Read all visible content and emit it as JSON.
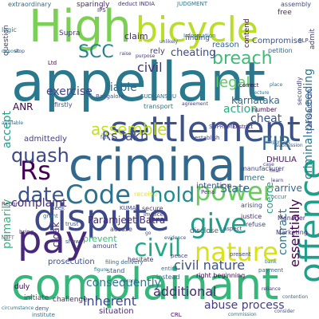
{
  "cloud": {
    "words": [
      {
        "id": "high",
        "text": "High",
        "color": "#7ad151"
      },
      {
        "id": "bicycle",
        "text": "bicycle",
        "color": "#b8de29"
      },
      {
        "id": "appellant",
        "text": "appellant",
        "color": "#2a788e"
      },
      {
        "id": "settlement",
        "text": "settlement",
        "color": "#3b528b"
      },
      {
        "id": "criminal",
        "text": "criminal",
        "color": "#31688e"
      },
      {
        "id": "dispute",
        "text": "dispute",
        "color": "#3e4989"
      },
      {
        "id": "complainant",
        "text": "complainant",
        "color": "#35b779"
      },
      {
        "id": "offence",
        "text": "offence",
        "color": "#1f9e89"
      },
      {
        "id": "pay",
        "text": "pay",
        "color": "#482878"
      },
      {
        "id": "rs",
        "text": "Rs",
        "color": "#440154"
      },
      {
        "id": "code",
        "text": "Code",
        "color": "#2c728e"
      },
      {
        "id": "date",
        "text": "date",
        "color": "#3b528b"
      },
      {
        "id": "power",
        "text": "power",
        "color": "#67cc5c"
      },
      {
        "id": "give",
        "text": "give",
        "color": "#1f9e89"
      },
      {
        "id": "nature",
        "text": "nature",
        "color": "#d8e219"
      },
      {
        "id": "civil_mid",
        "text": "civil",
        "color": "#22a884"
      },
      {
        "id": "hold",
        "text": "hold",
        "color": "#238a8d"
      },
      {
        "id": "quash",
        "text": "quash",
        "color": "#3e4989"
      },
      {
        "id": "fir",
        "text": "FIR",
        "color": "#31688e"
      },
      {
        "id": "breach",
        "text": "breach",
        "color": "#3dbc74"
      },
      {
        "id": "assemble",
        "text": "assemble",
        "color": "#c2df23"
      },
      {
        "id": "scc",
        "text": "SCC",
        "color": "#26828e"
      },
      {
        "id": "legal",
        "text": "legal",
        "color": "#5ec962"
      },
      {
        "id": "action",
        "text": "action",
        "color": "#28ae80"
      },
      {
        "id": "criminal_proceeding",
        "text": "criminal proceeding",
        "color": "#2a788e"
      },
      {
        "id": "essentially",
        "text": "essentially",
        "color": "#440154"
      },
      {
        "id": "civil_nature",
        "text": "civil nature",
        "color": "#3b528b"
      },
      {
        "id": "additional",
        "text": "additional",
        "color": "#482878"
      },
      {
        "id": "abuse_process",
        "text": "abuse process",
        "color": "#433e85"
      },
      {
        "id": "inherent",
        "text": "inherent",
        "color": "#3e4989"
      },
      {
        "id": "state",
        "text": "State",
        "color": "#31688e"
      },
      {
        "id": "intention",
        "text": "intention",
        "color": "#3b528b"
      },
      {
        "id": "consequently",
        "text": "consequently",
        "color": "#2a788e"
      },
      {
        "id": "complaint",
        "text": "complaint",
        "color": "#472d7b"
      },
      {
        "id": "exercise",
        "text": "exercise",
        "color": "#414487"
      },
      {
        "id": "liable",
        "text": "liable",
        "color": "#31688e"
      },
      {
        "id": "civil_top",
        "text": "civil",
        "color": "#46327e"
      },
      {
        "id": "rs_lakh",
        "text": "Rs lakh",
        "color": "#3e4989"
      },
      {
        "id": "cheat",
        "text": "cheat",
        "color": "#3b528b"
      },
      {
        "id": "karnataka",
        "text": "Karnataka",
        "color": "#31688e"
      },
      {
        "id": "cheating",
        "text": "cheating",
        "color": "#3e4989"
      },
      {
        "id": "claim",
        "text": "claim",
        "color": "#482878"
      },
      {
        "id": "anr",
        "text": "ANR",
        "color": "#440154"
      },
      {
        "id": "accept",
        "text": "accept",
        "color": "#1f9e89"
      },
      {
        "id": "paramjeet",
        "text": "Paramjeet Batra",
        "color": "#482878"
      },
      {
        "id": "contract",
        "text": "contract",
        "color": "#2a788e"
      },
      {
        "id": "coerce",
        "text": "coerce",
        "color": "#1fa187"
      },
      {
        "id": "primarily",
        "text": "primarily",
        "color": "#35b779"
      },
      {
        "id": "arrive",
        "text": "arrive",
        "color": "#31688e"
      },
      {
        "id": "prevent",
        "text": "prevent",
        "color": "#3dbc74"
      },
      {
        "id": "cloak",
        "text": "cloak",
        "color": "#472d7b"
      },
      {
        "id": "dhulia",
        "text": "DHULIA",
        "color": "#471063"
      },
      {
        "id": "transaction",
        "text": "transaction",
        "color": "#3e4989"
      },
      {
        "id": "admittedly",
        "text": "admittedly",
        "color": "#433e85"
      },
      {
        "id": "mere",
        "text": "mere",
        "color": "#2a788e"
      },
      {
        "id": "compromise",
        "text": "Compromise",
        "color": "#3b528b"
      },
      {
        "id": "reason",
        "text": "reason",
        "color": "#31688e"
      },
      {
        "id": "finding",
        "text": "finding",
        "color": "#3e4989"
      },
      {
        "id": "rely",
        "text": "rely",
        "color": "#433e85"
      },
      {
        "id": "supra",
        "text": "Supra",
        "color": "#443983"
      },
      {
        "id": "contend",
        "text": "contend",
        "color": "#440154"
      },
      {
        "id": "assembly",
        "text": "assembly",
        "color": "#3e4989"
      },
      {
        "id": "free",
        "text": "free",
        "color": "#482878"
      },
      {
        "id": "admit",
        "text": "admit",
        "color": "#414487"
      },
      {
        "id": "judgment",
        "text": "JUDGMENT",
        "color": "#2a788e"
      },
      {
        "id": "deduct",
        "text": "deduct INDIA",
        "color": "#46327e"
      },
      {
        "id": "sparingly",
        "text": "sparingly",
        "color": "#481f70"
      },
      {
        "id": "extraordinary",
        "text": "extraordinary",
        "color": "#31688e"
      },
      {
        "id": "question",
        "text": "question",
        "color": "#443983"
      },
      {
        "id": "logic",
        "text": "logic",
        "color": "#2a788e"
      },
      {
        "id": "manufacturer",
        "text": "manufacturer",
        "color": "#3e4989"
      },
      {
        "id": "number",
        "text": "number",
        "color": "#440154"
      },
      {
        "id": "manager",
        "text": "Manager",
        "color": "#482878"
      },
      {
        "id": "marketing",
        "text": "Marketing",
        "color": "#46327e"
      },
      {
        "id": "petition",
        "text": "petition",
        "color": "#31688e"
      },
      {
        "id": "firstly",
        "text": "firstly",
        "color": "#3b528b"
      },
      {
        "id": "transport",
        "text": "transport",
        "color": "#2a788e"
      },
      {
        "id": "secure",
        "text": "secure",
        "color": "#443983"
      },
      {
        "id": "invoice",
        "text": "invoice",
        "color": "#482878"
      },
      {
        "id": "receive",
        "text": "receive",
        "color": "#f0e51c"
      },
      {
        "id": "kumar",
        "text": "KUMAR",
        "color": "#3e4989"
      },
      {
        "id": "sudhanshu",
        "text": "SUDHANSHU",
        "color": "#31688e"
      },
      {
        "id": "bangalore",
        "text": "Bangalore",
        "color": "#3b528b"
      },
      {
        "id": "information",
        "text": "Information",
        "color": "#2a788e"
      },
      {
        "id": "supreme",
        "text": "SUPREME",
        "color": "#433e85"
      },
      {
        "id": "justice",
        "text": "justice",
        "color": "#482878"
      },
      {
        "id": "penal",
        "text": "Penal",
        "color": "#46327e"
      },
      {
        "id": "arising",
        "text": "arising",
        "color": "#3e4989"
      },
      {
        "id": "disclose",
        "text": "disclose",
        "color": "#31688e"
      },
      {
        "id": "prosecution",
        "text": "prosecution",
        "color": "#3b528b"
      },
      {
        "id": "occur",
        "text": "occur",
        "color": "#2a788e"
      },
      {
        "id": "refuse",
        "text": "refuse",
        "color": "#3e4989"
      },
      {
        "id": "right_beginning",
        "text": "right beginning",
        "color": "#440154"
      },
      {
        "id": "situation",
        "text": "situation",
        "color": "#482878"
      },
      {
        "id": "instead",
        "text": "instead",
        "color": "#31688e"
      },
      {
        "id": "stand",
        "text": "stand",
        "color": "#3b528b"
      },
      {
        "id": "entire",
        "text": "entire",
        "color": "#2a788e"
      },
      {
        "id": "peace",
        "text": "peace",
        "color": "#433e85"
      },
      {
        "id": "initiate",
        "text": "initiate",
        "color": "#3e4989"
      },
      {
        "id": "challenge",
        "text": "challenge",
        "color": "#482878"
      },
      {
        "id": "duly",
        "text": "duly",
        "color": "#440154"
      },
      {
        "id": "hesitate",
        "text": "hesitate",
        "color": "#46327e"
      },
      {
        "id": "deny",
        "text": "deny",
        "color": "#3b528b"
      },
      {
        "id": "payment",
        "text": "payment",
        "color": "#31688e"
      },
      {
        "id": "institute",
        "text": "institute",
        "color": "#2a788e"
      },
      {
        "id": "amount",
        "text": "amount",
        "color": "#3e4989"
      },
      {
        "id": "accuse",
        "text": "accuse",
        "color": "#433e85"
      },
      {
        "id": "show",
        "text": "show",
        "color": "#3b528b"
      },
      {
        "id": "bring",
        "text": "bring",
        "color": "#482878"
      },
      {
        "id": "filing",
        "text": "filing delivery",
        "color": "#31688e"
      },
      {
        "id": "bank",
        "text": "bank",
        "color": "#2a788e"
      },
      {
        "id": "aspect",
        "text": "aspect",
        "color": "#3e4989"
      },
      {
        "id": "report",
        "text": "Report",
        "color": "#46327e"
      },
      {
        "id": "trust",
        "text": "trust",
        "color": "#3b528b"
      },
      {
        "id": "grant",
        "text": "grant",
        "color": "#2a788e"
      },
      {
        "id": "nbft",
        "text": "NBFT",
        "color": "#31688e"
      },
      {
        "id": "establish",
        "text": "establish",
        "color": "#3e4989"
      },
      {
        "id": "correct",
        "text": "correct",
        "color": "#440154"
      },
      {
        "id": "district",
        "text": "District",
        "color": "#482878"
      },
      {
        "id": "seek",
        "text": "Seek",
        "color": "#3b528b"
      },
      {
        "id": "available",
        "text": "available",
        "color": "#31688e"
      },
      {
        "id": "deposit",
        "text": "deposit",
        "color": "#2a788e"
      },
      {
        "id": "stop",
        "text": "stop",
        "color": "#3e4989"
      },
      {
        "id": "raise",
        "text": "raise",
        "color": "#433e85"
      },
      {
        "id": "purpose",
        "text": "purpose",
        "color": "#46327e"
      },
      {
        "id": "fail",
        "text": "fail",
        "color": "#3b528b"
      },
      {
        "id": "place",
        "text": "place",
        "color": "#31688e"
      },
      {
        "id": "tecture",
        "text": "tecture",
        "color": "#2a788e"
      },
      {
        "id": "slp",
        "text": "SLP",
        "color": "#3e4989"
      },
      {
        "id": "ltd",
        "text": "Ltd",
        "color": "#440154"
      },
      {
        "id": "ips",
        "text": "IPS",
        "color": "#482878"
      },
      {
        "id": "important",
        "text": "important",
        "color": "#31688e"
      },
      {
        "id": "submission",
        "text": "submission",
        "color": "#3b528b"
      },
      {
        "id": "circumstance",
        "text": "circumstance",
        "color": "#2a788e"
      },
      {
        "id": "unlikely",
        "text": "unlikely",
        "color": "#3e4989"
      },
      {
        "id": "learn",
        "text": "learn",
        "color": "#46327e"
      },
      {
        "id": "agreement",
        "text": "agreement",
        "color": "#433e85"
      },
      {
        "id": "contention",
        "text": "contention",
        "color": "#31688e"
      },
      {
        "id": "consider",
        "text": "consider",
        "color": "#3b528b"
      },
      {
        "id": "commission",
        "text": "commission",
        "color": "#2a788e"
      },
      {
        "id": "secondly",
        "text": "secondly",
        "color": "#3e4989"
      },
      {
        "id": "final",
        "text": "final",
        "color": "#482878"
      },
      {
        "id": "crl",
        "text": "CRL",
        "color": "#440154"
      },
      {
        "id": "evidence",
        "text": "evidence",
        "color": "#3b528b"
      },
      {
        "id": "record",
        "text": "record",
        "color": "#31688e"
      },
      {
        "id": "figure",
        "text": "figure",
        "color": "#2a788e"
      },
      {
        "id": "present",
        "text": "present",
        "color": "#3e4989"
      },
      {
        "id": "case",
        "text": "case",
        "color": "#433e85"
      },
      {
        "id": "reliance",
        "text": "reliance",
        "color": "#46327e"
      },
      {
        "id": "go",
        "text": "go",
        "color": "#3b528b"
      }
    ]
  }
}
